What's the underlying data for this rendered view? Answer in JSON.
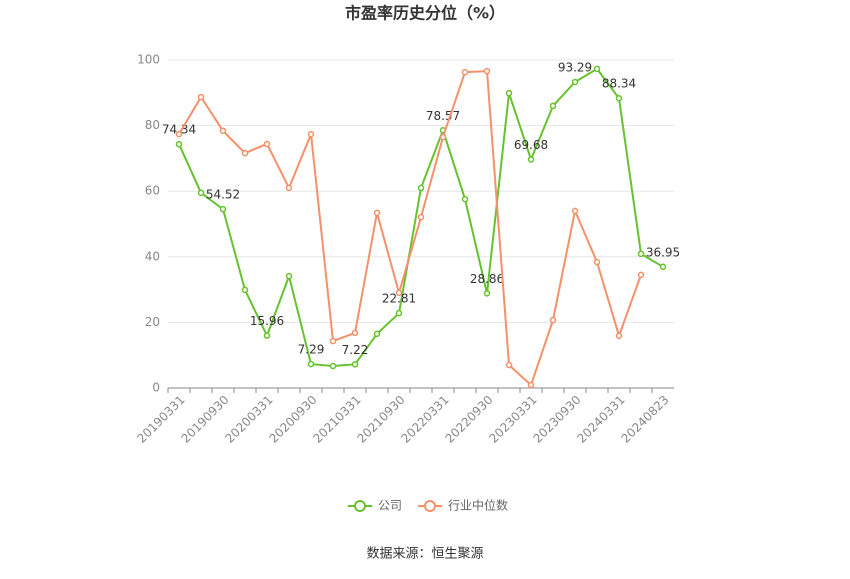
{
  "chart_data": {
    "type": "line",
    "title": "市盈率历史分位（%）",
    "categories": [
      "20190331",
      null,
      "20190930",
      null,
      "20200331",
      null,
      "20200930",
      null,
      "20210331",
      null,
      "20210930",
      null,
      "20220331",
      null,
      "20220930",
      null,
      "20230331",
      null,
      "20230930",
      null,
      "20240331",
      null,
      "20240823"
    ],
    "series": [
      {
        "name": "公司",
        "color": "#66c22e",
        "values": [
          74.34,
          59.5,
          54.52,
          29.9,
          15.96,
          34.1,
          7.29,
          6.7,
          7.22,
          16.5,
          22.81,
          61.0,
          78.57,
          57.6,
          28.86,
          89.9,
          69.68,
          86.0,
          93.29,
          97.3,
          88.34,
          40.9,
          36.95
        ],
        "value_labels": [
          "74.34",
          null,
          "54.52",
          null,
          "15.96",
          null,
          "7.29",
          null,
          "7.22",
          null,
          "22.81",
          null,
          "78.57",
          null,
          "28.86",
          null,
          "69.68",
          null,
          "93.29",
          null,
          "88.34",
          null,
          "36.95"
        ]
      },
      {
        "name": "行业中位数",
        "color": "#f4916a",
        "values": [
          77.4,
          88.7,
          78.4,
          71.6,
          74.4,
          61.0,
          77.4,
          14.3,
          16.8,
          53.4,
          29.0,
          52.1,
          76.5,
          96.3,
          96.6,
          7.0,
          0.9,
          20.7,
          54.0,
          38.4,
          15.9,
          34.5,
          null
        ]
      }
    ],
    "ylim": [
      0,
      100
    ],
    "yticks": [
      0,
      20,
      40,
      60,
      80,
      100
    ],
    "grid": true,
    "source": "数据来源：恒生聚源"
  }
}
